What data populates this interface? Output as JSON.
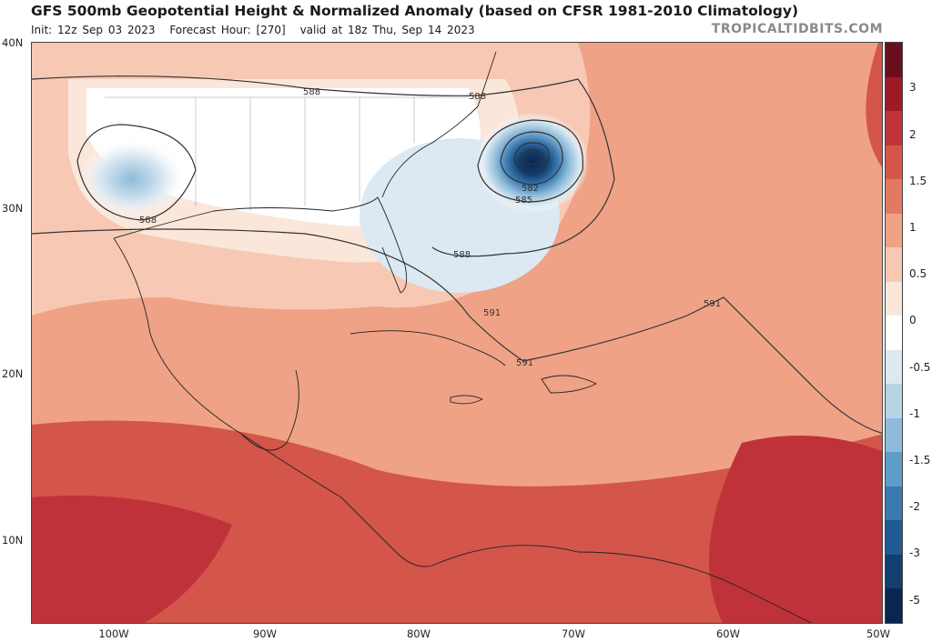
{
  "header": {
    "title": "GFS 500mb Geopotential Height & Normalized Anomaly (based on CFSR 1981-2010 Climatology)",
    "init": "Init: 12z Sep 03 2023",
    "forecast_hour": "Forecast Hour: [270]",
    "valid": "valid at 18z Thu, Sep 14 2023",
    "brand": "TROPICALTIDBITS.COM"
  },
  "axes": {
    "lat_labels": [
      "40N",
      "30N",
      "20N",
      "10N"
    ],
    "lon_labels": [
      "100W",
      "90W",
      "80W",
      "70W",
      "60W",
      "50W"
    ]
  },
  "contour_labels": [
    "588",
    "588",
    "588",
    "588",
    "582",
    "585",
    "591",
    "591",
    "591"
  ],
  "colorbar": {
    "labels": [
      "3",
      "2",
      "1.5",
      "1",
      "0.5",
      "0",
      "-0.5",
      "-1",
      "-1.5",
      "-2",
      "-3",
      "-5"
    ],
    "colors": [
      "#6b0f1f",
      "#9e1a27",
      "#c0323a",
      "#d4554a",
      "#e27a62",
      "#efa286",
      "#f7c9b4",
      "#fbe6da",
      "#ffffff",
      "#dce9f2",
      "#b7d3e6",
      "#8dbbd9",
      "#5f9cc7",
      "#3b7ab0",
      "#215a93",
      "#123e70",
      "#0b2550"
    ]
  },
  "colors": {
    "accent": "#d4554a",
    "neg": "#215a93"
  }
}
